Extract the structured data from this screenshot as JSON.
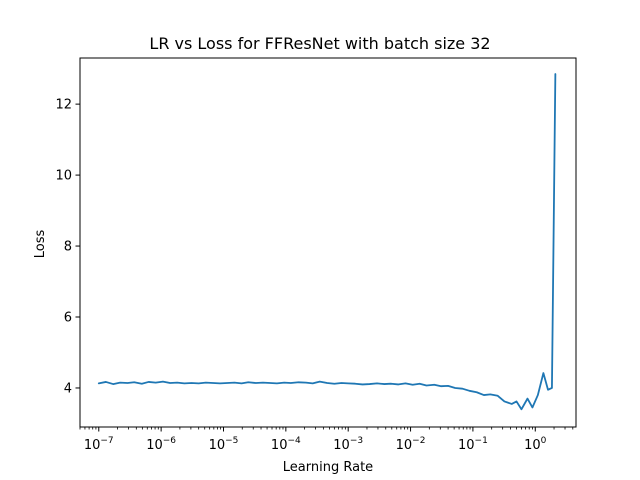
{
  "chart_data": {
    "type": "line",
    "title": "LR vs Loss for FFResNet with batch size 32",
    "xlabel": "Learning Rate",
    "ylabel": "Loss",
    "xscale": "log",
    "xlim": [
      5e-08,
      4.5
    ],
    "ylim": [
      2.9,
      13.3
    ],
    "grid": false,
    "x_ticks": [
      {
        "base": "10",
        "exp": "−7",
        "value": 1e-07
      },
      {
        "base": "10",
        "exp": "−6",
        "value": 1e-06
      },
      {
        "base": "10",
        "exp": "−5",
        "value": 1e-05
      },
      {
        "base": "10",
        "exp": "−4",
        "value": 0.0001
      },
      {
        "base": "10",
        "exp": "−3",
        "value": 0.001
      },
      {
        "base": "10",
        "exp": "−2",
        "value": 0.01
      },
      {
        "base": "10",
        "exp": "−1",
        "value": 0.1
      },
      {
        "base": "10",
        "exp": "0",
        "value": 1
      }
    ],
    "y_ticks": [
      {
        "label": "4",
        "value": 4
      },
      {
        "label": "6",
        "value": 6
      },
      {
        "label": "8",
        "value": 8
      },
      {
        "label": "10",
        "value": 10
      },
      {
        "label": "12",
        "value": 12
      }
    ],
    "series": [
      {
        "color": "#1f77b4",
        "x": [
          1e-07,
          1.3e-07,
          1.7e-07,
          2.2e-07,
          2.9e-07,
          3.7e-07,
          4.9e-07,
          6.3e-07,
          8.2e-07,
          1.07e-06,
          1.39e-06,
          1.81e-06,
          2.36e-06,
          3.07e-06,
          4e-06,
          5.2e-06,
          6.8e-06,
          8.8e-06,
          1.15e-05,
          1.5e-05,
          1.95e-05,
          2.5e-05,
          3.3e-05,
          4.3e-05,
          5.6e-05,
          7.2e-05,
          9.4e-05,
          0.00012,
          0.00016,
          0.00021,
          0.00027,
          0.00035,
          0.00046,
          0.0006,
          0.00078,
          0.001,
          0.0013,
          0.0017,
          0.0022,
          0.0029,
          0.0038,
          0.0049,
          0.0064,
          0.0083,
          0.0108,
          0.014,
          0.018,
          0.024,
          0.031,
          0.04,
          0.052,
          0.068,
          0.088,
          0.115,
          0.15,
          0.19,
          0.25,
          0.32,
          0.42,
          0.5,
          0.6,
          0.75,
          0.9,
          1.1,
          1.35,
          1.6,
          1.85,
          2.1
        ],
        "y": [
          4.13,
          4.17,
          4.11,
          4.15,
          4.14,
          4.16,
          4.12,
          4.17,
          4.15,
          4.18,
          4.14,
          4.15,
          4.13,
          4.14,
          4.13,
          4.15,
          4.14,
          4.13,
          4.14,
          4.15,
          4.13,
          4.16,
          4.14,
          4.15,
          4.14,
          4.13,
          4.15,
          4.14,
          4.16,
          4.15,
          4.13,
          4.18,
          4.14,
          4.12,
          4.14,
          4.13,
          4.12,
          4.1,
          4.11,
          4.13,
          4.11,
          4.12,
          4.1,
          4.13,
          4.09,
          4.12,
          4.07,
          4.09,
          4.05,
          4.06,
          4.0,
          3.98,
          3.92,
          3.88,
          3.8,
          3.82,
          3.78,
          3.62,
          3.55,
          3.62,
          3.4,
          3.7,
          3.45,
          3.8,
          4.42,
          3.95,
          4.0,
          12.85
        ]
      }
    ]
  }
}
